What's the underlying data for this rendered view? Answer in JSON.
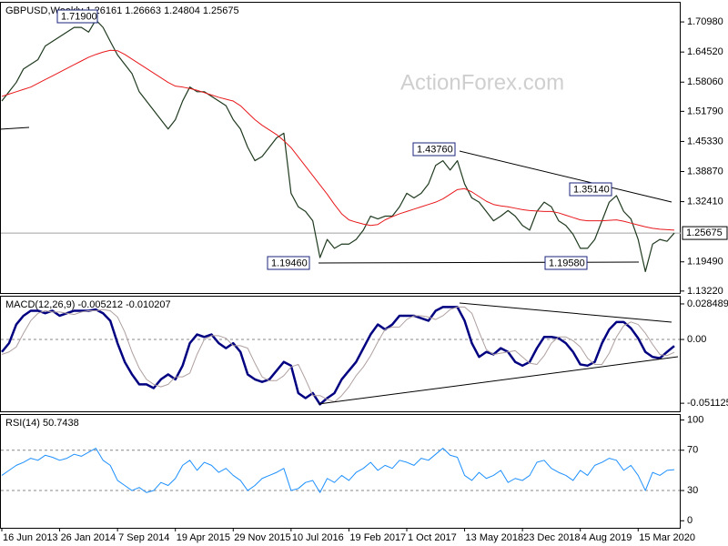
{
  "chart_data": [
    {
      "type": "line",
      "title": "GBPUSD,Weekly  1.26161 1.26663 1.24804 1.25675",
      "watermark": "ActionForex.com",
      "series": [
        {
          "color": "#1f3a1f",
          "width": 1.2,
          "values": [
            1.54,
            1.56,
            1.58,
            1.609,
            1.619,
            1.629,
            1.658,
            1.668,
            1.678,
            1.688,
            1.698,
            1.698,
            1.688,
            1.714,
            1.698,
            1.668,
            1.639,
            1.619,
            1.599,
            1.56,
            1.54,
            1.52,
            1.5,
            1.48,
            1.5,
            1.54,
            1.57,
            1.56,
            1.56,
            1.55,
            1.54,
            1.53,
            1.5,
            1.48,
            1.441,
            1.412,
            1.421,
            1.441,
            1.461,
            1.471,
            1.342,
            1.313,
            1.303,
            1.283,
            1.204,
            1.243,
            1.224,
            1.233,
            1.233,
            1.243,
            1.263,
            1.293,
            1.287,
            1.293,
            1.293,
            1.313,
            1.342,
            1.332,
            1.342,
            1.362,
            1.402,
            1.412,
            1.392,
            1.412,
            1.362,
            1.332,
            1.323,
            1.303,
            1.283,
            1.293,
            1.305,
            1.293,
            1.273,
            1.263,
            1.303,
            1.323,
            1.313,
            1.283,
            1.273,
            1.254,
            1.224,
            1.224,
            1.243,
            1.283,
            1.323,
            1.337,
            1.303,
            1.287,
            1.243,
            1.174,
            1.233,
            1.243,
            1.239,
            1.25675
          ]
        },
        {
          "color": "#e8191c",
          "width": 1,
          "values": [
            1.55,
            1.555,
            1.56,
            1.565,
            1.57,
            1.578,
            1.586,
            1.594,
            1.602,
            1.61,
            1.618,
            1.626,
            1.634,
            1.64,
            1.645,
            1.649,
            1.648,
            1.64,
            1.63,
            1.62,
            1.61,
            1.6,
            1.59,
            1.58,
            1.572,
            1.57,
            1.567,
            1.563,
            1.558,
            1.553,
            1.548,
            1.544,
            1.54,
            1.53,
            1.515,
            1.5,
            1.488,
            1.478,
            1.468,
            1.455,
            1.44,
            1.42,
            1.4,
            1.38,
            1.36,
            1.34,
            1.318,
            1.298,
            1.285,
            1.28,
            1.276,
            1.273,
            1.275,
            1.285,
            1.292,
            1.298,
            1.303,
            1.308,
            1.313,
            1.318,
            1.323,
            1.33,
            1.34,
            1.35,
            1.352,
            1.345,
            1.335,
            1.325,
            1.318,
            1.315,
            1.313,
            1.31,
            1.307,
            1.305,
            1.304,
            1.303,
            1.303,
            1.3,
            1.295,
            1.29,
            1.285,
            1.283,
            1.283,
            1.283,
            1.284,
            1.285,
            1.282,
            1.278,
            1.274,
            1.27,
            1.267,
            1.265,
            1.264,
            1.263
          ]
        }
      ],
      "price_line": 1.25675,
      "annotations": [
        "1.71900",
        "1.43760",
        "1.35140",
        "1.19460",
        "1.19580"
      ],
      "ylim": [
        1.128,
        1.751
      ],
      "yticks": [
        {
          "value": 1.7098,
          "label": "1.70980"
        },
        {
          "value": 1.6452,
          "label": "1.64520"
        },
        {
          "value": 1.5806,
          "label": "1.58060"
        },
        {
          "value": 1.5179,
          "label": "1.51790"
        },
        {
          "value": 1.4533,
          "label": "1.45330"
        },
        {
          "value": 1.3887,
          "label": "1.38870"
        },
        {
          "value": 1.3241,
          "label": "1.32410"
        },
        {
          "value": 1.1949,
          "label": "1.19490"
        },
        {
          "value": 1.1322,
          "label": "1.13220"
        }
      ]
    },
    {
      "type": "line",
      "title": "MACD(12,26,9) -0.005212 -0.010207",
      "series": [
        {
          "color": "#000080",
          "width": 2.5,
          "values": [
            -0.01,
            -0.003,
            0.012,
            0.019,
            0.023,
            0.023,
            0.021,
            0.023,
            0.019,
            0.021,
            0.023,
            0.023,
            0.023,
            0.024,
            0.021,
            0.015,
            -0.003,
            -0.018,
            -0.028,
            -0.036,
            -0.036,
            -0.039,
            -0.032,
            -0.028,
            -0.032,
            -0.021,
            -0.003,
            0.004,
            0.002,
            0.004,
            -0.003,
            -0.007,
            -0.003,
            -0.01,
            -0.028,
            -0.032,
            -0.034,
            -0.032,
            -0.025,
            -0.018,
            -0.021,
            -0.043,
            -0.047,
            -0.043,
            -0.052,
            -0.047,
            -0.043,
            -0.032,
            -0.025,
            -0.018,
            -0.007,
            0.004,
            0.012,
            0.008,
            0.012,
            0.019,
            0.019,
            0.019,
            0.017,
            0.015,
            0.023,
            0.026,
            0.026,
            0.026,
            0.015,
            -0.003,
            -0.014,
            -0.01,
            -0.012,
            -0.007,
            -0.01,
            -0.018,
            -0.021,
            -0.018,
            -0.007,
            0.002,
            0.002,
            0.001,
            -0.003,
            -0.01,
            -0.02,
            -0.021,
            -0.018,
            -0.003,
            0.008,
            0.014,
            0.014,
            0.009,
            0.001,
            -0.01,
            -0.014,
            -0.015,
            -0.01,
            -0.005212
          ]
        },
        {
          "color": "#b0a0a0",
          "width": 1,
          "values": [
            -0.012,
            -0.01,
            -0.006,
            0.005,
            0.015,
            0.021,
            0.023,
            0.022,
            0.022,
            0.021,
            0.02,
            0.022,
            0.023,
            0.023,
            0.024,
            0.023,
            0.018,
            0.006,
            -0.01,
            -0.023,
            -0.032,
            -0.036,
            -0.038,
            -0.036,
            -0.03,
            -0.03,
            -0.027,
            -0.012,
            0.0,
            0.003,
            0.003,
            0.001,
            -0.005,
            -0.005,
            -0.007,
            -0.019,
            -0.03,
            -0.033,
            -0.033,
            -0.029,
            -0.022,
            -0.02,
            -0.032,
            -0.045,
            -0.045,
            -0.048,
            -0.05,
            -0.045,
            -0.038,
            -0.029,
            -0.022,
            -0.013,
            -0.002,
            0.008,
            0.01,
            0.01,
            0.016,
            0.019,
            0.019,
            0.018,
            0.016,
            0.019,
            0.024,
            0.026,
            0.026,
            0.021,
            0.006,
            -0.008,
            -0.012,
            -0.011,
            -0.01,
            -0.009,
            -0.014,
            -0.019,
            -0.02,
            -0.013,
            -0.003,
            0.002,
            0.002,
            -0.001,
            -0.006,
            -0.015,
            -0.02,
            -0.02,
            -0.011,
            0.002,
            0.011,
            0.014,
            0.012,
            0.005,
            -0.004,
            -0.012,
            -0.013,
            -0.010207
          ]
        }
      ],
      "levels": [
        0
      ],
      "ylim": [
        -0.0576,
        0.0343
      ],
      "yticks": [
        0.028489,
        {
          "value": 0,
          "label": "0.00"
        },
        -0.051125
      ]
    },
    {
      "type": "line",
      "title": "RSI(14) 50.7438",
      "categories": [
        "16 Jun 2013",
        null,
        null,
        null,
        null,
        null,
        null,
        null,
        "26 Jan 2014",
        null,
        null,
        null,
        null,
        null,
        null,
        null,
        "7 Sep 2014",
        null,
        null,
        null,
        null,
        null,
        null,
        null,
        "19 Apr 2015",
        null,
        null,
        null,
        null,
        null,
        null,
        null,
        "29 Nov 2015",
        null,
        null,
        null,
        null,
        null,
        null,
        null,
        "10 Jul 2016",
        null,
        null,
        null,
        null,
        null,
        null,
        null,
        "19 Feb 2017",
        null,
        null,
        null,
        null,
        null,
        null,
        null,
        "1 Oct 2017",
        null,
        null,
        null,
        null,
        null,
        null,
        null,
        "13 May 2018",
        null,
        null,
        null,
        null,
        null,
        null,
        null,
        "23 Dec 2018",
        null,
        null,
        null,
        null,
        null,
        null,
        null,
        "4 Aug 2019",
        null,
        null,
        null,
        null,
        null,
        null,
        null,
        "15 Mar 2020",
        null,
        null,
        null,
        null,
        null
      ],
      "series": [
        {
          "color": "#1e90ff",
          "width": 1,
          "values": [
            45,
            50,
            55,
            58,
            62,
            60,
            65,
            63,
            60,
            62,
            66,
            64,
            68,
            72,
            60,
            55,
            40,
            35,
            30,
            33,
            28,
            30,
            38,
            35,
            42,
            55,
            60,
            50,
            58,
            55,
            48,
            52,
            45,
            40,
            30,
            35,
            42,
            45,
            48,
            52,
            30,
            32,
            38,
            40,
            28,
            42,
            38,
            45,
            40,
            48,
            52,
            58,
            50,
            55,
            52,
            60,
            58,
            55,
            62,
            60,
            66,
            72,
            65,
            63,
            45,
            40,
            48,
            42,
            45,
            50,
            38,
            42,
            40,
            45,
            58,
            60,
            52,
            48,
            45,
            40,
            50,
            45,
            55,
            58,
            62,
            60,
            50,
            55,
            45,
            30,
            48,
            45,
            50,
            50.7438
          ]
        }
      ],
      "levels": [
        70,
        30
      ],
      "ylim": [
        -7,
        105
      ],
      "yticks": [
        100,
        70,
        30,
        0
      ]
    }
  ]
}
